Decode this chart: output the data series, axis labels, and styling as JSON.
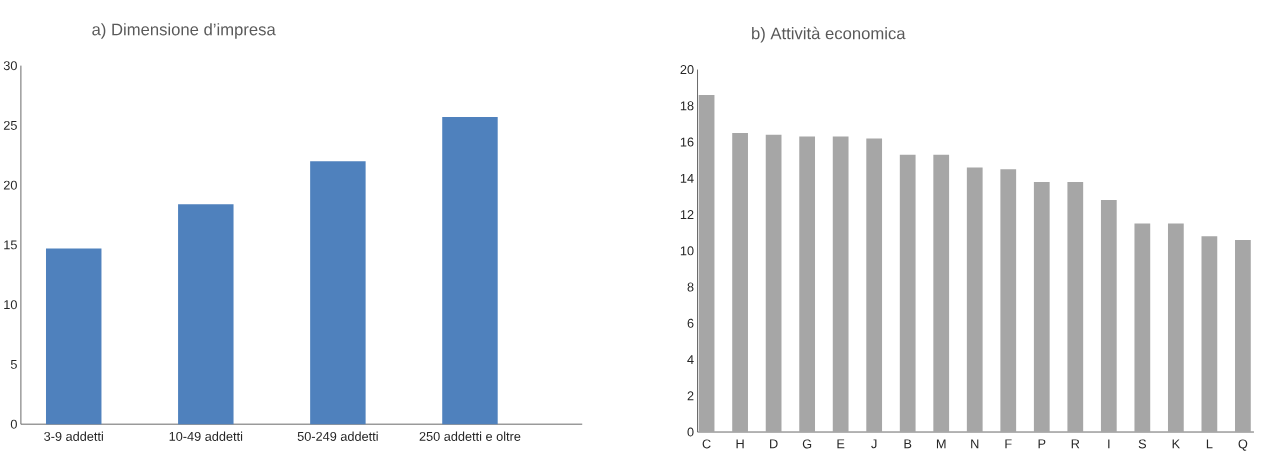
{
  "chart_data": [
    {
      "type": "bar",
      "title": "a)    Dimensione d’impresa",
      "categories": [
        "3-9 addetti",
        "10-49 addetti",
        "50-249 addetti",
        "250 addetti e oltre"
      ],
      "values": [
        14.7,
        18.4,
        22.0,
        25.7
      ],
      "color": "#4f81bd",
      "ylim": [
        0,
        30
      ],
      "yticks": [
        0,
        5,
        10,
        15,
        20,
        25,
        30
      ]
    },
    {
      "type": "bar",
      "title": "b) Attività economica",
      "categories": [
        "C",
        "H",
        "D",
        "G",
        "E",
        "J",
        "B",
        "M",
        "N",
        "F",
        "P",
        "R",
        "I",
        "S",
        "K",
        "L",
        "Q"
      ],
      "values": [
        18.6,
        16.5,
        16.4,
        16.3,
        16.3,
        16.2,
        15.3,
        15.3,
        14.6,
        14.5,
        13.8,
        13.8,
        12.8,
        11.5,
        11.5,
        10.8,
        10.6
      ],
      "color": "#a6a6a6",
      "ylim": [
        0,
        20
      ],
      "yticks": [
        0,
        2,
        4,
        6,
        8,
        10,
        12,
        14,
        16,
        18,
        20
      ]
    }
  ]
}
